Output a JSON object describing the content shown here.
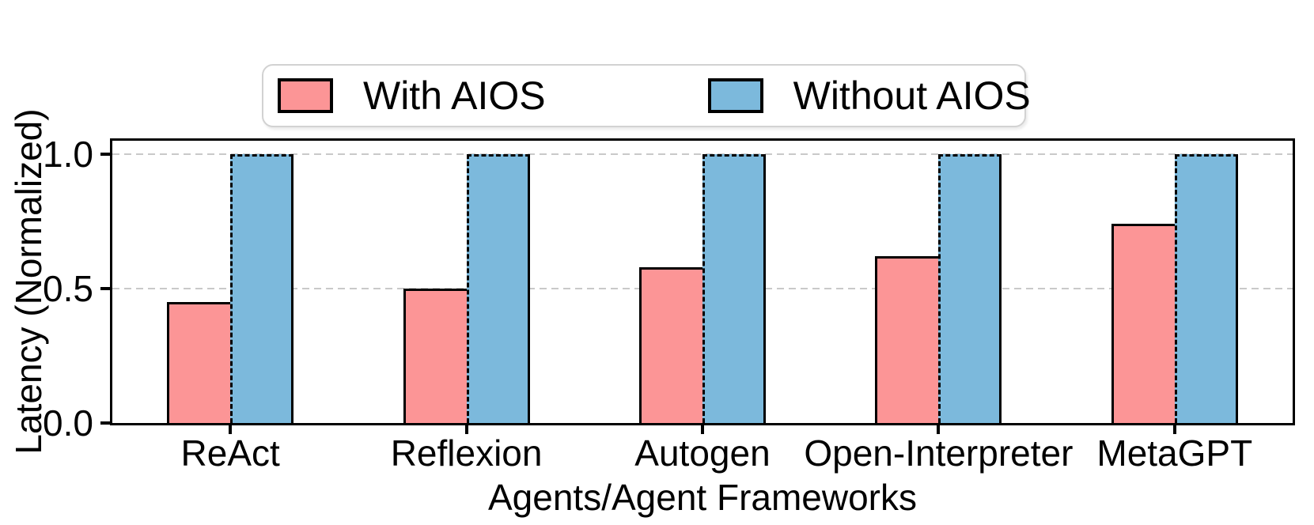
{
  "chart_data": {
    "type": "bar",
    "title": "",
    "categories": [
      "ReAct",
      "Reflexion",
      "Autogen",
      "Open-Interpreter",
      "MetaGPT"
    ],
    "series": [
      {
        "name": "With AIOS",
        "color": "#FC9596",
        "edge_color": "#000000",
        "values": [
          0.45,
          0.5,
          0.58,
          0.62,
          0.74
        ]
      },
      {
        "name": "Without AIOS",
        "color": "#7CB9DC",
        "edge_color": "#000000",
        "values": [
          1.0,
          1.0,
          1.0,
          1.0,
          1.0
        ]
      }
    ],
    "xlabel": "Agents/Agent Frameworks",
    "ylabel": "Latency (Normalized)",
    "yticks": [
      0.0,
      0.5,
      1.0
    ],
    "ytick_labels": [
      "0.0",
      "0.5",
      "1.0"
    ],
    "ylim": [
      0,
      1.05
    ],
    "grid": "horizontal-dashed",
    "grid_color": "#c9c9c9",
    "legend_position": "top-center"
  }
}
